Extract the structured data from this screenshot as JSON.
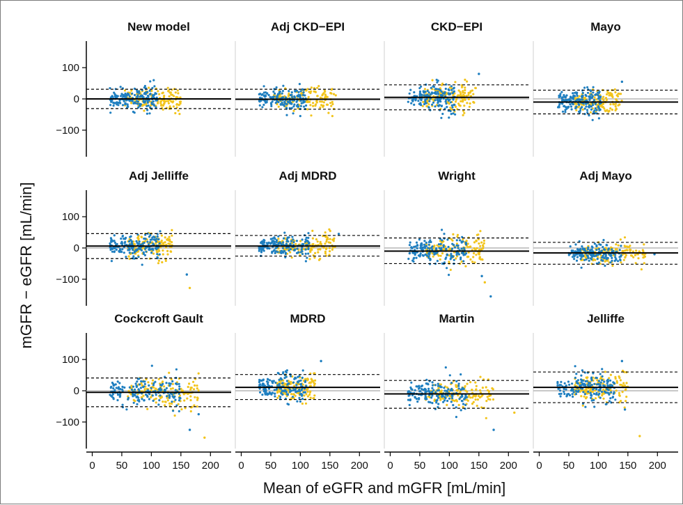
{
  "colors": {
    "series_blue": "#1f7fc0",
    "series_yellow": "#f2c41c",
    "mean_line": "#000000",
    "zero_line": "#b5b5b5",
    "loa_line": "#000000"
  },
  "chart_data": {
    "type": "scatter",
    "subtype": "bland-altman small multiples",
    "xlabel": "Mean of eGFR and mGFR [mL/min]",
    "ylabel": "mGFR − eGFR [mL/min]",
    "xlim": [
      -10,
      235
    ],
    "ylim": [
      -185,
      185
    ],
    "xticks": [
      0,
      50,
      100,
      150,
      200
    ],
    "yticks": [
      -100,
      0,
      100
    ],
    "ytick_labels": [
      "−100",
      "0",
      "100"
    ],
    "grid": false,
    "legend": "none",
    "panels": [
      {
        "title": "New model",
        "bias": 0,
        "upper": 31,
        "lower": -31,
        "center": 85,
        "spread": 18,
        "blue_x": [
          30,
          110
        ],
        "yellow_x": [
          55,
          150
        ],
        "outliers": []
      },
      {
        "title": "Adj CKD−EPI",
        "bias": -1,
        "upper": 31,
        "lower": -33,
        "center": 90,
        "spread": 18,
        "blue_x": [
          30,
          110
        ],
        "yellow_x": [
          55,
          160
        ],
        "outliers": []
      },
      {
        "title": "CKD−EPI",
        "bias": 5,
        "upper": 45,
        "lower": -35,
        "center": 85,
        "spread": 22,
        "blue_x": [
          30,
          110
        ],
        "yellow_x": [
          55,
          145
        ],
        "outliers": [
          [
            150,
            80
          ]
        ]
      },
      {
        "title": "Mayo",
        "bias": -10,
        "upper": 28,
        "lower": -48,
        "center": 90,
        "spread": 20,
        "blue_x": [
          30,
          105
        ],
        "yellow_x": [
          60,
          140
        ],
        "outliers": [
          [
            140,
            55
          ]
        ]
      },
      {
        "title": "Adj Jelliffe",
        "bias": 6,
        "upper": 46,
        "lower": -34,
        "center": 85,
        "spread": 20,
        "blue_x": [
          30,
          115
        ],
        "yellow_x": [
          60,
          135
        ],
        "outliers": [
          [
            160,
            -85
          ],
          [
            165,
            -128
          ]
        ]
      },
      {
        "title": "Adj MDRD",
        "bias": 6,
        "upper": 40,
        "lower": -26,
        "center": 85,
        "spread": 18,
        "blue_x": [
          30,
          115
        ],
        "yellow_x": [
          60,
          160
        ],
        "outliers": [
          [
            165,
            45
          ]
        ]
      },
      {
        "title": "Wright",
        "bias": -10,
        "upper": 32,
        "lower": -50,
        "center": 95,
        "spread": 22,
        "blue_x": [
          30,
          130
        ],
        "yellow_x": [
          60,
          160
        ],
        "outliers": [
          [
            170,
            -155
          ],
          [
            160,
            -110
          ],
          [
            155,
            -90
          ]
        ]
      },
      {
        "title": "Adj Mayo",
        "bias": -16,
        "upper": 18,
        "lower": -52,
        "center": 110,
        "spread": 17,
        "blue_x": [
          50,
          140
        ],
        "yellow_x": [
          70,
          180
        ],
        "outliers": [
          [
            195,
            -20
          ]
        ]
      },
      {
        "title": "Cockcroft Gault",
        "bias": -5,
        "upper": 41,
        "lower": -51,
        "center": 95,
        "spread": 24,
        "blue_x": [
          30,
          150
        ],
        "yellow_x": [
          60,
          180
        ],
        "outliers": [
          [
            165,
            -125
          ],
          [
            190,
            -150
          ],
          [
            180,
            -75
          ]
        ]
      },
      {
        "title": "MDRD",
        "bias": 11,
        "upper": 52,
        "lower": -28,
        "center": 85,
        "spread": 22,
        "blue_x": [
          30,
          110
        ],
        "yellow_x": [
          60,
          125
        ],
        "outliers": [
          [
            135,
            95
          ]
        ]
      },
      {
        "title": "Martin",
        "bias": -10,
        "upper": 33,
        "lower": -56,
        "center": 100,
        "spread": 22,
        "blue_x": [
          30,
          130
        ],
        "yellow_x": [
          60,
          175
        ],
        "outliers": [
          [
            175,
            -125
          ],
          [
            210,
            -70
          ]
        ]
      },
      {
        "title": "Jelliffe",
        "bias": 11,
        "upper": 60,
        "lower": -38,
        "center": 95,
        "spread": 24,
        "blue_x": [
          30,
          130
        ],
        "yellow_x": [
          60,
          150
        ],
        "outliers": [
          [
            140,
            95
          ],
          [
            170,
            -145
          ],
          [
            145,
            -60
          ]
        ]
      }
    ]
  }
}
